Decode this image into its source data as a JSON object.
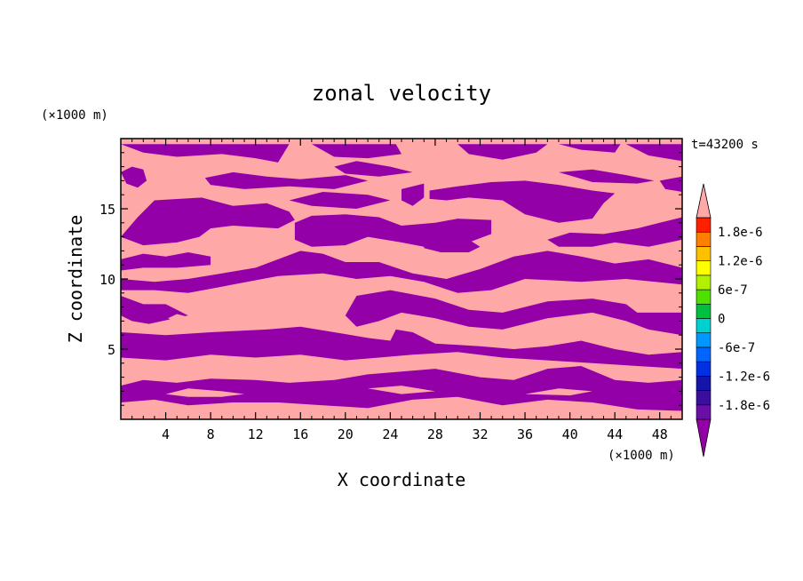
{
  "chart_data": {
    "type": "heatmap",
    "title": "zonal velocity",
    "xlabel": "X coordinate",
    "ylabel": "Z coordinate",
    "x_unit": "(×1000 m)",
    "y_unit": "(×1000 m)",
    "time_label": "t=43200 s",
    "xlim": [
      0,
      50
    ],
    "ylim": [
      0,
      20
    ],
    "x_ticks": [
      4,
      8,
      12,
      16,
      20,
      24,
      28,
      32,
      36,
      40,
      44,
      48
    ],
    "y_ticks": [
      5,
      10,
      15
    ],
    "colorbar": {
      "labels": [
        "1.8e-6",
        "1.2e-6",
        "6e-7",
        "0",
        "-6e-7",
        "-1.2e-6",
        "-1.8e-6"
      ],
      "label_values": [
        1.8e-06,
        1.2e-06,
        6e-07,
        0,
        -6e-07,
        -1.2e-06,
        -1.8e-06
      ],
      "extend": "both",
      "over_color": "#ffa8a8",
      "under_color": "#9400a8",
      "levels": [
        {
          "min": -2.1e-06,
          "max": -1.8e-06,
          "color": "#6a0fa8"
        },
        {
          "min": -1.8e-06,
          "max": -1.5e-06,
          "color": "#3b0f9e"
        },
        {
          "min": -1.5e-06,
          "max": -1.2e-06,
          "color": "#1414a8"
        },
        {
          "min": -1.2e-06,
          "max": -9e-07,
          "color": "#0030e0"
        },
        {
          "min": -9e-07,
          "max": -6e-07,
          "color": "#0064ff"
        },
        {
          "min": -6e-07,
          "max": -3e-07,
          "color": "#0098ff"
        },
        {
          "min": -3e-07,
          "max": 0,
          "color": "#00d0d0"
        },
        {
          "min": 0,
          "max": 3e-07,
          "color": "#00c040"
        },
        {
          "min": 3e-07,
          "max": 6e-07,
          "color": "#50e000"
        },
        {
          "min": 6e-07,
          "max": 9e-07,
          "color": "#b0f000"
        },
        {
          "min": 9e-07,
          "max": 1.2e-06,
          "color": "#ffff00"
        },
        {
          "min": 1.2e-06,
          "max": 1.5e-06,
          "color": "#ffc000"
        },
        {
          "min": 1.5e-06,
          "max": 1.8e-06,
          "color": "#ff8000"
        },
        {
          "min": 1.8e-06,
          "max": 2.1e-06,
          "color": "#ff2000"
        }
      ]
    },
    "positive_color": "#ffa8a8",
    "negative_color": "#9400a8",
    "negative_regions": [
      [
        [
          0,
          19.6
        ],
        [
          2,
          19.0
        ],
        [
          5,
          18.7
        ],
        [
          9,
          18.9
        ],
        [
          12,
          18.6
        ],
        [
          14,
          18.3
        ],
        [
          15,
          19.6
        ]
      ],
      [
        [
          0,
          17.6
        ],
        [
          0.5,
          16.8
        ],
        [
          1.5,
          16.5
        ],
        [
          2.3,
          17.0
        ],
        [
          2.0,
          17.8
        ],
        [
          1.0,
          18.0
        ]
      ],
      [
        [
          7.5,
          17.2
        ],
        [
          10,
          17.6
        ],
        [
          13,
          17.3
        ],
        [
          16,
          17.1
        ],
        [
          20,
          17.4
        ],
        [
          22,
          17.0
        ],
        [
          19,
          16.4
        ],
        [
          15,
          16.6
        ],
        [
          11,
          16.4
        ],
        [
          8,
          16.7
        ]
      ],
      [
        [
          17,
          19.6
        ],
        [
          19,
          18.7
        ],
        [
          22,
          18.6
        ],
        [
          25,
          18.9
        ],
        [
          24.5,
          19.6
        ]
      ],
      [
        [
          19,
          18.0
        ],
        [
          21,
          18.4
        ],
        [
          24,
          18.0
        ],
        [
          26,
          17.6
        ],
        [
          23,
          17.3
        ],
        [
          20,
          17.5
        ]
      ],
      [
        [
          30,
          19.6
        ],
        [
          31,
          18.9
        ],
        [
          34,
          18.5
        ],
        [
          37,
          19.0
        ],
        [
          38,
          19.6
        ]
      ],
      [
        [
          39,
          19.6
        ],
        [
          41,
          19.2
        ],
        [
          44,
          19.0
        ],
        [
          44.5,
          19.6
        ]
      ],
      [
        [
          39,
          17.6
        ],
        [
          42,
          17.8
        ],
        [
          45,
          17.4
        ],
        [
          47.5,
          17.0
        ],
        [
          46,
          16.8
        ],
        [
          42,
          16.9
        ]
      ],
      [
        [
          48,
          17.0
        ],
        [
          50,
          17.3
        ],
        [
          50,
          16.2
        ],
        [
          48.5,
          16.4
        ]
      ],
      [
        [
          45,
          19.6
        ],
        [
          47,
          18.8
        ],
        [
          50,
          18.4
        ],
        [
          50,
          19.6
        ]
      ],
      [
        [
          0,
          13.0
        ],
        [
          1.5,
          14.4
        ],
        [
          3,
          15.6
        ],
        [
          7.2,
          15.8
        ],
        [
          10,
          15.2
        ],
        [
          13,
          15.4
        ],
        [
          15,
          14.8
        ],
        [
          15.5,
          14.2
        ],
        [
          14,
          13.6
        ],
        [
          10,
          13.8
        ],
        [
          8,
          13.6
        ],
        [
          7,
          13.0
        ],
        [
          5,
          12.6
        ],
        [
          2,
          12.4
        ]
      ],
      [
        [
          15,
          15.6
        ],
        [
          18,
          16.2
        ],
        [
          22,
          16.0
        ],
        [
          24,
          15.6
        ],
        [
          21,
          15.0
        ],
        [
          17,
          15.2
        ]
      ],
      [
        [
          25,
          16.4
        ],
        [
          27,
          16.8
        ],
        [
          27,
          15.8
        ],
        [
          26,
          15.2
        ],
        [
          25,
          15.6
        ]
      ],
      [
        [
          27.5,
          16.3
        ],
        [
          30,
          16.6
        ],
        [
          33,
          16.9
        ],
        [
          36,
          17.0
        ],
        [
          39,
          16.7
        ],
        [
          42,
          16.3
        ],
        [
          44,
          16.1
        ],
        [
          43,
          15.4
        ],
        [
          42,
          14.3
        ],
        [
          39,
          14.0
        ],
        [
          36,
          14.6
        ],
        [
          34,
          15.6
        ],
        [
          31,
          15.8
        ],
        [
          29,
          15.6
        ],
        [
          27.5,
          15.7
        ]
      ],
      [
        [
          15.5,
          14.0
        ],
        [
          17,
          14.5
        ],
        [
          20,
          14.6
        ],
        [
          23,
          14.4
        ],
        [
          25,
          13.8
        ],
        [
          28,
          14.0
        ],
        [
          30,
          14.3
        ],
        [
          33,
          14.2
        ],
        [
          33,
          13.2
        ],
        [
          31,
          12.6
        ],
        [
          27,
          12.3
        ],
        [
          25,
          12.6
        ],
        [
          22,
          13.0
        ],
        [
          20,
          12.4
        ],
        [
          17,
          12.3
        ],
        [
          15.5,
          12.8
        ]
      ],
      [
        [
          27,
          12.7
        ],
        [
          28.5,
          13.0
        ],
        [
          31,
          12.8
        ],
        [
          32,
          12.3
        ],
        [
          31,
          11.9
        ],
        [
          28.5,
          11.9
        ],
        [
          27,
          12.2
        ]
      ],
      [
        [
          38,
          12.8
        ],
        [
          40,
          13.3
        ],
        [
          43,
          13.2
        ],
        [
          46,
          13.6
        ],
        [
          48,
          14.0
        ],
        [
          50,
          14.4
        ],
        [
          50,
          12.8
        ],
        [
          47,
          12.3
        ],
        [
          44,
          12.6
        ],
        [
          42,
          12.3
        ],
        [
          39,
          12.3
        ]
      ],
      [
        [
          0,
          11.4
        ],
        [
          2,
          11.8
        ],
        [
          4,
          11.6
        ],
        [
          6,
          11.9
        ],
        [
          8,
          11.6
        ],
        [
          8,
          11.0
        ],
        [
          5,
          10.8
        ],
        [
          2,
          10.8
        ],
        [
          0,
          10.6
        ]
      ],
      [
        [
          0,
          10.0
        ],
        [
          3,
          9.8
        ],
        [
          6,
          10.0
        ],
        [
          9,
          10.4
        ],
        [
          12,
          10.8
        ],
        [
          14,
          11.4
        ],
        [
          16,
          12.0
        ],
        [
          18,
          11.8
        ],
        [
          20,
          11.2
        ],
        [
          23,
          11.2
        ],
        [
          26,
          10.4
        ],
        [
          29,
          10.0
        ],
        [
          32,
          10.7
        ],
        [
          35,
          11.6
        ],
        [
          38,
          12.0
        ],
        [
          41,
          11.6
        ],
        [
          44,
          11.1
        ],
        [
          47,
          11.4
        ],
        [
          50,
          10.8
        ],
        [
          50,
          9.6
        ],
        [
          45,
          10.0
        ],
        [
          41,
          9.8
        ],
        [
          36,
          10.0
        ],
        [
          33,
          9.2
        ],
        [
          30,
          9.0
        ],
        [
          27,
          9.8
        ],
        [
          24,
          10.2
        ],
        [
          21,
          10.0
        ],
        [
          18,
          10.4
        ],
        [
          14,
          10.2
        ],
        [
          10,
          9.6
        ],
        [
          6,
          9.0
        ],
        [
          3,
          9.2
        ],
        [
          0,
          9.2
        ]
      ],
      [
        [
          21,
          8.8
        ],
        [
          24,
          9.2
        ],
        [
          28,
          8.6
        ],
        [
          31,
          7.8
        ],
        [
          34,
          7.6
        ],
        [
          38,
          8.4
        ],
        [
          42,
          8.6
        ],
        [
          45,
          8.2
        ],
        [
          46,
          7.6
        ],
        [
          50,
          7.6
        ],
        [
          50,
          6.0
        ],
        [
          47,
          6.4
        ],
        [
          45,
          7.0
        ],
        [
          42,
          7.6
        ],
        [
          38,
          7.2
        ],
        [
          34,
          6.4
        ],
        [
          31,
          6.6
        ],
        [
          28,
          7.2
        ],
        [
          25,
          7.6
        ],
        [
          23,
          7.0
        ],
        [
          21,
          6.6
        ],
        [
          20,
          7.4
        ]
      ],
      [
        [
          0,
          8.8
        ],
        [
          2,
          8.2
        ],
        [
          4,
          8.2
        ],
        [
          6,
          7.4
        ],
        [
          2.5,
          6.8
        ],
        [
          1,
          7.0
        ],
        [
          0,
          7.4
        ]
      ],
      [
        [
          0,
          6.2
        ],
        [
          4,
          6.0
        ],
        [
          8,
          6.2
        ],
        [
          13,
          6.4
        ],
        [
          16,
          6.6
        ],
        [
          19,
          6.2
        ],
        [
          22,
          5.8
        ],
        [
          24,
          5.6
        ],
        [
          24.5,
          6.4
        ],
        [
          26,
          6.2
        ],
        [
          28,
          5.4
        ],
        [
          32,
          5.2
        ],
        [
          35,
          5.0
        ],
        [
          38,
          5.2
        ],
        [
          41,
          5.6
        ],
        [
          44,
          5.0
        ],
        [
          47,
          4.6
        ],
        [
          50,
          4.8
        ],
        [
          50,
          3.6
        ],
        [
          46,
          3.8
        ],
        [
          42,
          4.0
        ],
        [
          38,
          4.2
        ],
        [
          34,
          4.4
        ],
        [
          30,
          4.8
        ],
        [
          26,
          4.6
        ],
        [
          23,
          4.4
        ],
        [
          20,
          4.2
        ],
        [
          16,
          4.6
        ],
        [
          12,
          4.4
        ],
        [
          8,
          4.6
        ],
        [
          4,
          4.2
        ],
        [
          0,
          4.4
        ]
      ],
      [
        [
          0,
          2.4
        ],
        [
          2,
          2.8
        ],
        [
          5,
          2.6
        ],
        [
          8,
          2.9
        ],
        [
          12,
          2.8
        ],
        [
          15,
          2.6
        ],
        [
          19,
          2.8
        ],
        [
          22,
          3.2
        ],
        [
          25,
          3.4
        ],
        [
          28,
          3.6
        ],
        [
          32,
          3.0
        ],
        [
          35,
          2.8
        ],
        [
          38,
          3.6
        ],
        [
          41,
          3.8
        ],
        [
          44,
          2.8
        ],
        [
          47,
          2.6
        ],
        [
          50,
          2.8
        ],
        [
          50,
          0.6
        ],
        [
          46,
          0.7
        ],
        [
          42,
          1.2
        ],
        [
          38,
          1.4
        ],
        [
          34,
          1.0
        ],
        [
          30,
          1.6
        ],
        [
          26,
          1.4
        ],
        [
          22,
          0.8
        ],
        [
          18,
          1.0
        ],
        [
          14,
          1.2
        ],
        [
          10,
          1.2
        ],
        [
          6,
          1.0
        ],
        [
          3,
          1.4
        ],
        [
          0,
          1.2
        ]
      ]
    ],
    "positive_regions": [
      [
        [
          4,
          1.8
        ],
        [
          6,
          2.2
        ],
        [
          9,
          2.0
        ],
        [
          11,
          1.8
        ],
        [
          9,
          1.6
        ],
        [
          6,
          1.6
        ]
      ],
      [
        [
          22,
          2.2
        ],
        [
          25,
          2.4
        ],
        [
          28,
          2.0
        ],
        [
          25,
          1.8
        ]
      ],
      [
        [
          36,
          1.8
        ],
        [
          39,
          2.2
        ],
        [
          42,
          2.0
        ],
        [
          40,
          1.7
        ]
      ],
      [
        [
          4.2,
          7.2
        ],
        [
          5,
          7.5
        ],
        [
          6,
          7.3
        ],
        [
          5,
          6.9
        ]
      ],
      [
        [
          9.2,
          11.2
        ],
        [
          10,
          11.3
        ],
        [
          10,
          11.0
        ],
        [
          9.2,
          11.0
        ]
      ]
    ]
  }
}
